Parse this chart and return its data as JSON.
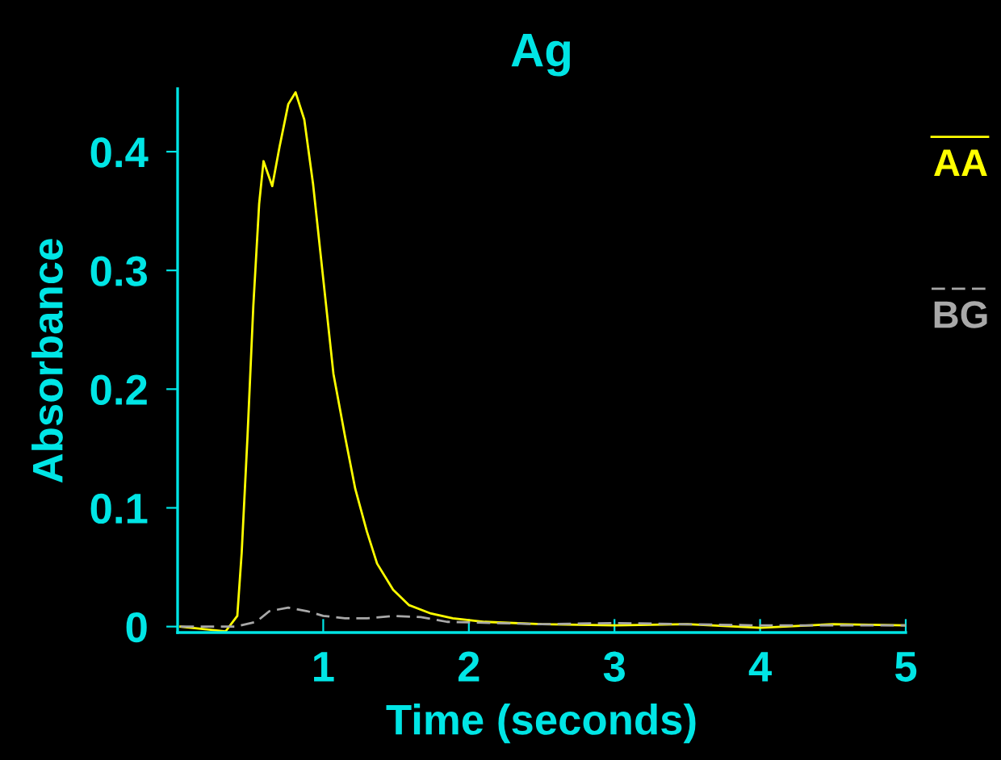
{
  "chart_data": {
    "type": "line",
    "title": "Ag",
    "xlabel": "Time (seconds)",
    "ylabel": "Absorbance",
    "xlim": [
      0,
      5
    ],
    "ylim": [
      -0.005,
      0.453
    ],
    "xticks": [
      1,
      2,
      3,
      4,
      5
    ],
    "yticks": [
      {
        "value": 0,
        "label": "0"
      },
      {
        "value": 0.1,
        "label": "0.1"
      },
      {
        "value": 0.2,
        "label": "0.2"
      },
      {
        "value": 0.3,
        "label": "0.3"
      },
      {
        "value": 0.4,
        "label": "0.4"
      }
    ],
    "grid": false,
    "legend": "right",
    "marker": "none",
    "series": [
      {
        "name": "AA",
        "color": "#ffff00",
        "line_style": "solid",
        "x": [
          0.02,
          0.33,
          0.41,
          0.44,
          0.48,
          0.52,
          0.56,
          0.59,
          0.65,
          0.7,
          0.76,
          0.81,
          0.87,
          0.93,
          1.0,
          1.07,
          1.15,
          1.22,
          1.3,
          1.37,
          1.48,
          1.59,
          1.74,
          1.89,
          2.11,
          2.5,
          3,
          3.5,
          4,
          4.5,
          5
        ],
        "values": [
          0,
          -0.004,
          0.009,
          0.062,
          0.16,
          0.27,
          0.356,
          0.392,
          0.371,
          0.404,
          0.44,
          0.45,
          0.427,
          0.373,
          0.293,
          0.213,
          0.16,
          0.116,
          0.08,
          0.053,
          0.031,
          0.018,
          0.011,
          0.007,
          0.004,
          0.002,
          0.001,
          0.002,
          -0.001,
          0.002,
          0.001
        ]
      },
      {
        "name": "BG",
        "color": "#a8a8a8",
        "line_style": "dashed",
        "x": [
          0.02,
          0.4,
          0.54,
          0.63,
          0.76,
          0.89,
          1.0,
          1.15,
          1.3,
          1.48,
          1.67,
          1.85,
          2.5,
          3,
          4,
          5
        ],
        "values": [
          0,
          0,
          0.004,
          0.013,
          0.016,
          0.013,
          0.009,
          0.007,
          0.007,
          0.009,
          0.008,
          0.004,
          0.002,
          0.003,
          0.001,
          0.001
        ]
      }
    ]
  }
}
